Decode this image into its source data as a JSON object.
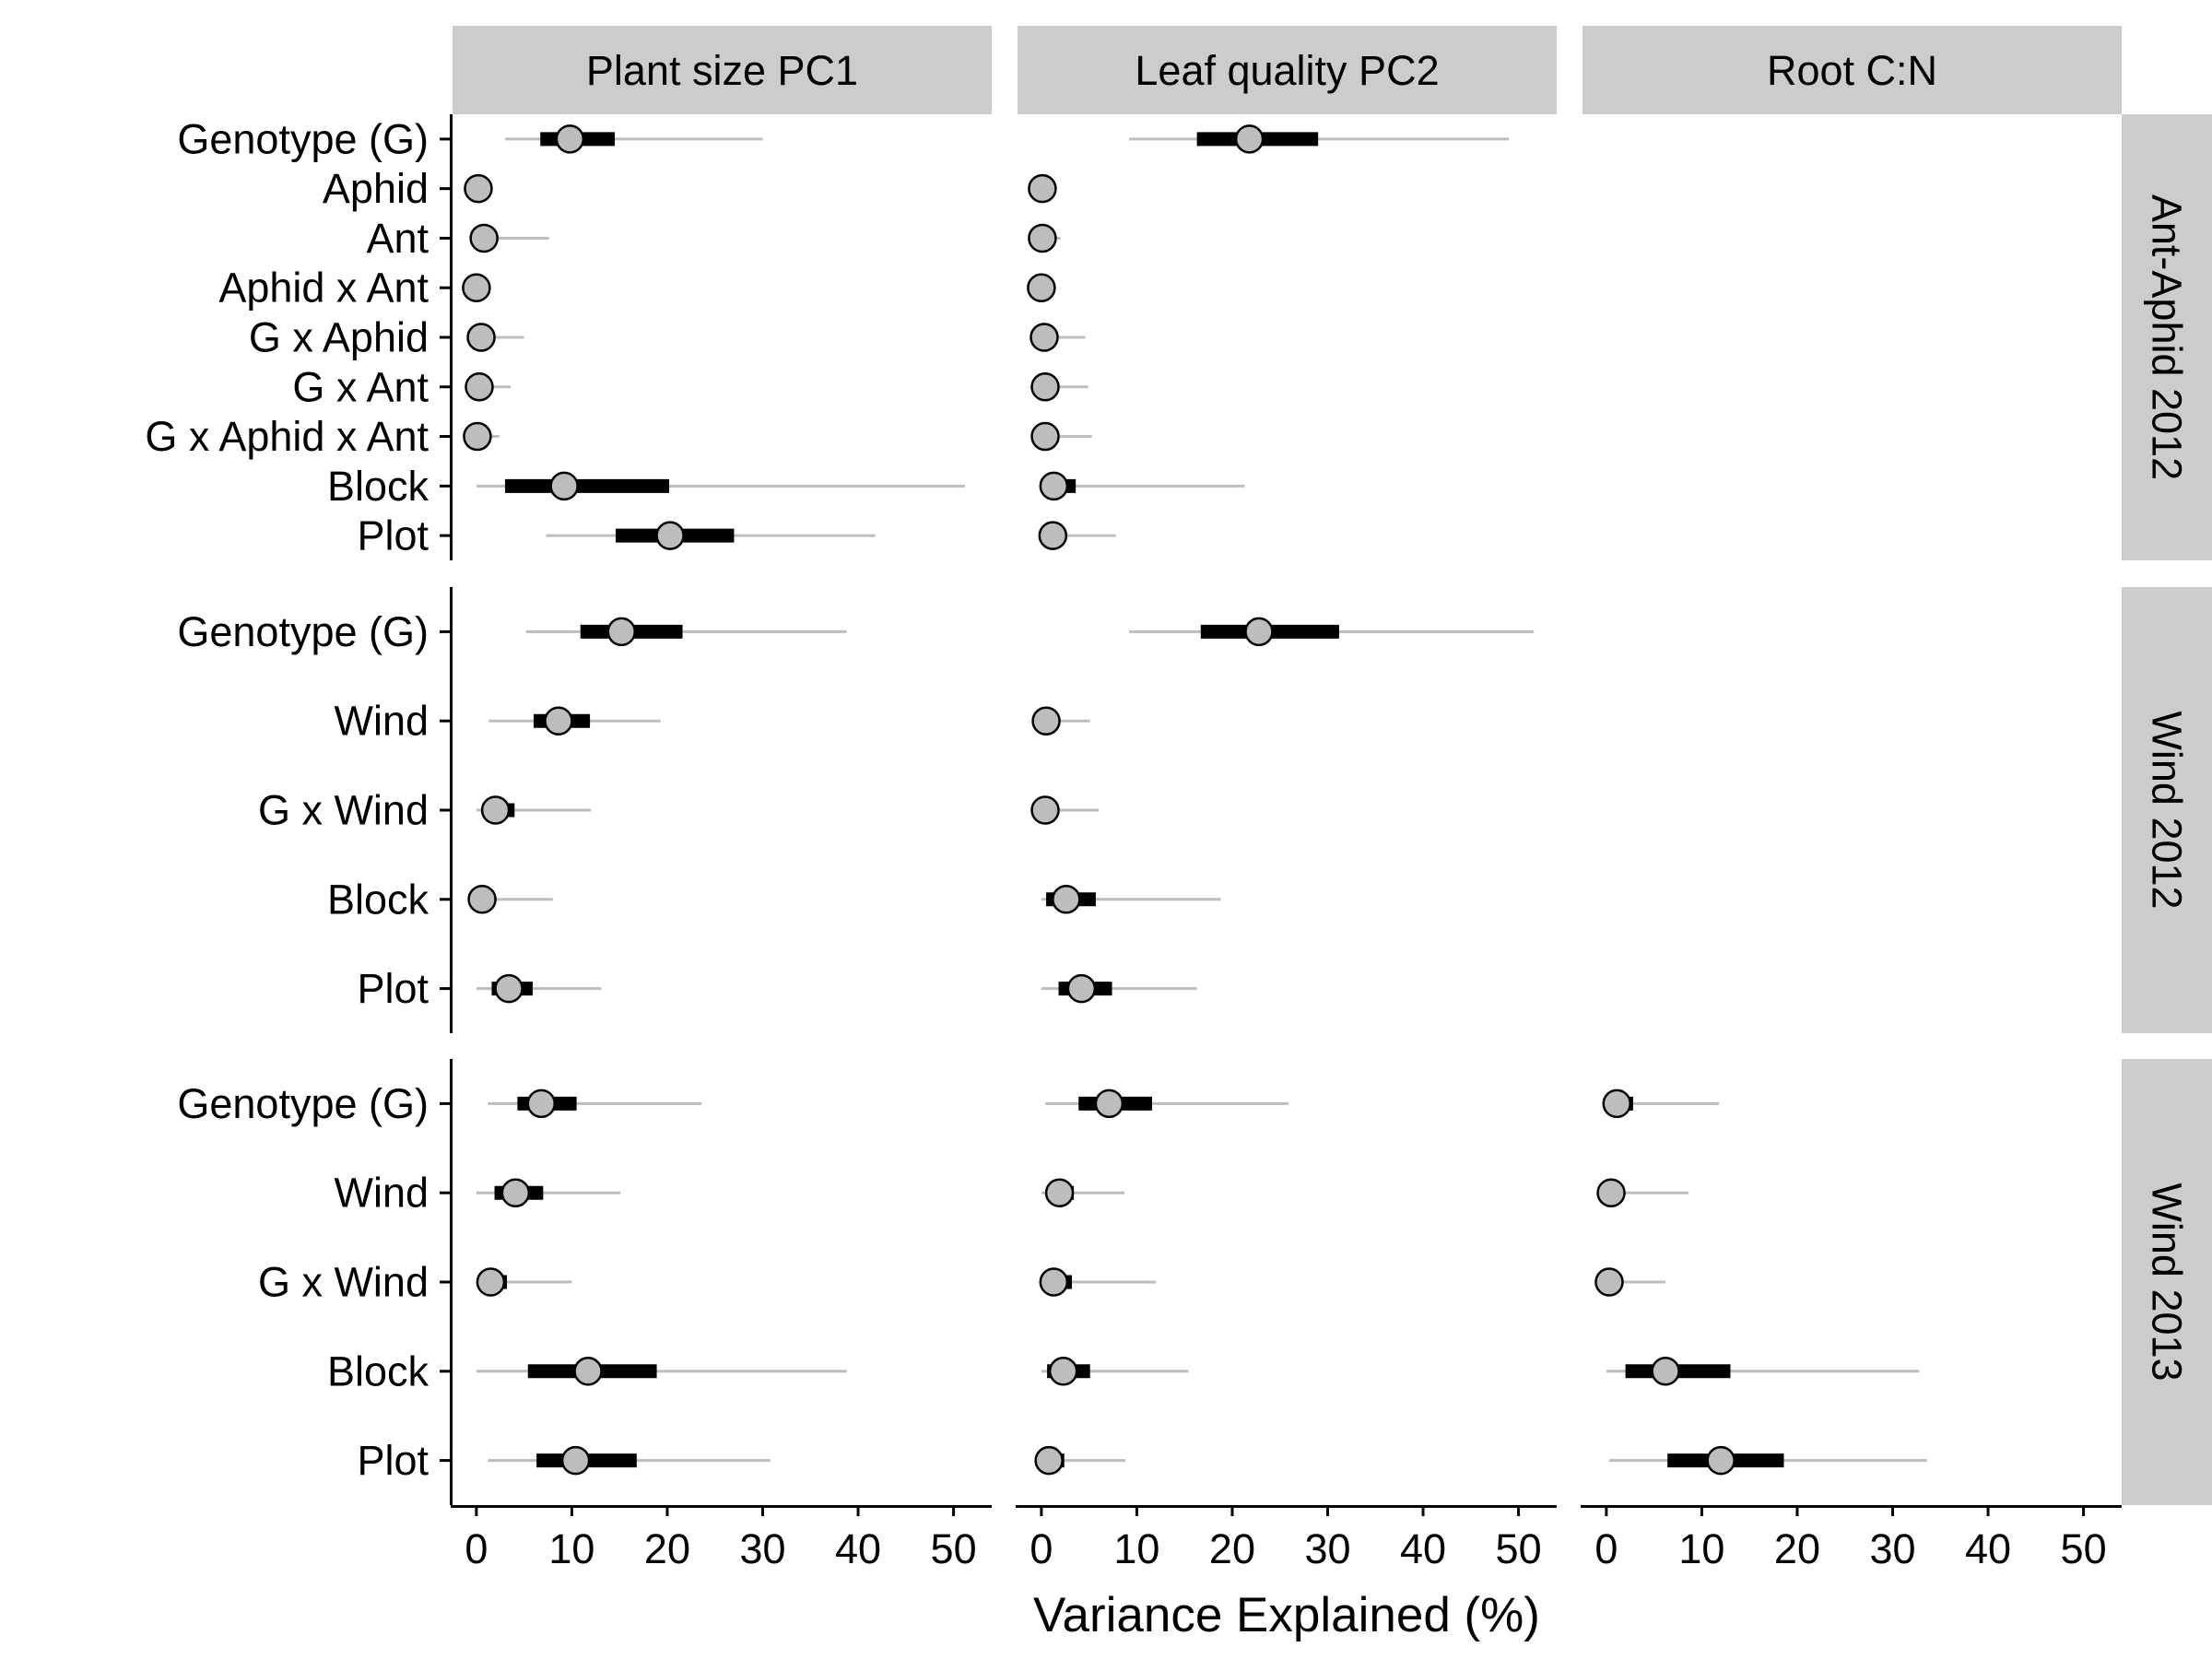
{
  "chart_data": {
    "type": "forest",
    "xlabel": "Variance Explained (%)",
    "xlim": [
      -2.5,
      54
    ],
    "x_ticks": [
      0,
      10,
      20,
      30,
      40,
      50
    ],
    "facet_columns": [
      "Plant size PC1",
      "Leaf quality PC2",
      "Root C:N"
    ],
    "facet_rows": [
      {
        "label": "Ant-Aphid 2012",
        "terms": [
          "Genotype (G)",
          "Aphid",
          "Ant",
          "Aphid x Ant",
          "G x Aphid",
          "G x Ant",
          "G x Aphid x Ant",
          "Block",
          "Plot"
        ],
        "panels": [
          {
            "column": "Plant size PC1",
            "estimates": [
              {
                "term": "Genotype (G)",
                "median": 9.8,
                "inner": [
                  6.7,
                  14.5
                ],
                "outer": [
                  3.0,
                  30.0
                ]
              },
              {
                "term": "Aphid",
                "median": 0.2,
                "inner": [
                  0.0,
                  0.3
                ],
                "outer": [
                  0.0,
                  0.3
                ]
              },
              {
                "term": "Ant",
                "median": 0.8,
                "inner": [
                  0.1,
                  1.2
                ],
                "outer": [
                  0.0,
                  7.6
                ]
              },
              {
                "term": "Aphid x Ant",
                "median": 0.0,
                "inner": [
                  0.0,
                  0.1
                ],
                "outer": [
                  0.0,
                  0.1
                ]
              },
              {
                "term": "G x Aphid",
                "median": 0.5,
                "inner": [
                  0.1,
                  0.9
                ],
                "outer": [
                  0.0,
                  5.0
                ]
              },
              {
                "term": "G x Ant",
                "median": 0.3,
                "inner": [
                  0.1,
                  0.6
                ],
                "outer": [
                  0.0,
                  3.6
                ]
              },
              {
                "term": "G x Aphid x Ant",
                "median": 0.1,
                "inner": [
                  0.0,
                  0.3
                ],
                "outer": [
                  0.0,
                  2.4
                ]
              },
              {
                "term": "Block",
                "median": 9.2,
                "inner": [
                  3.0,
                  20.2
                ],
                "outer": [
                  0.0,
                  51.2
                ]
              },
              {
                "term": "Plot",
                "median": 20.3,
                "inner": [
                  14.6,
                  27.0
                ],
                "outer": [
                  7.3,
                  41.8
                ]
              }
            ]
          },
          {
            "column": "Leaf quality PC2",
            "estimates": [
              {
                "term": "Genotype (G)",
                "median": 21.8,
                "inner": [
                  16.3,
                  29.0
                ],
                "outer": [
                  9.2,
                  49.0
                ]
              },
              {
                "term": "Aphid",
                "median": 0.1,
                "inner": [
                  0.0,
                  0.2
                ],
                "outer": [
                  0.0,
                  0.2
                ]
              },
              {
                "term": "Ant",
                "median": 0.1,
                "inner": [
                  0.0,
                  0.3
                ],
                "outer": [
                  0.0,
                  2.0
                ]
              },
              {
                "term": "Aphid x Ant",
                "median": 0.0,
                "inner": [
                  0.0,
                  0.1
                ],
                "outer": [
                  0.0,
                  0.1
                ]
              },
              {
                "term": "G x Aphid",
                "median": 0.3,
                "inner": [
                  0.1,
                  0.7
                ],
                "outer": [
                  0.0,
                  4.6
                ]
              },
              {
                "term": "G x Ant",
                "median": 0.4,
                "inner": [
                  0.1,
                  0.8
                ],
                "outer": [
                  0.0,
                  4.9
                ]
              },
              {
                "term": "G x Aphid x Ant",
                "median": 0.4,
                "inner": [
                  0.1,
                  0.9
                ],
                "outer": [
                  0.0,
                  5.3
                ]
              },
              {
                "term": "Block",
                "median": 1.3,
                "inner": [
                  0.3,
                  3.6
                ],
                "outer": [
                  0.0,
                  21.3
                ]
              },
              {
                "term": "Plot",
                "median": 1.2,
                "inner": [
                  0.3,
                  2.2
                ],
                "outer": [
                  0.0,
                  7.8
                ]
              }
            ]
          }
        ]
      },
      {
        "label": "Wind 2012",
        "terms": [
          "Genotype (G)",
          "Wind",
          "G x Wind",
          "Block",
          "Plot"
        ],
        "panels": [
          {
            "column": "Plant size PC1",
            "estimates": [
              {
                "term": "Genotype (G)",
                "median": 15.2,
                "inner": [
                  10.9,
                  21.6
                ],
                "outer": [
                  5.2,
                  38.8
                ]
              },
              {
                "term": "Wind",
                "median": 8.6,
                "inner": [
                  6.0,
                  11.9
                ],
                "outer": [
                  1.3,
                  19.3
                ]
              },
              {
                "term": "G x Wind",
                "median": 2.0,
                "inner": [
                  1.0,
                  4.0
                ],
                "outer": [
                  0.0,
                  12.0
                ]
              },
              {
                "term": "Block",
                "median": 0.6,
                "inner": [
                  0.1,
                  1.4
                ],
                "outer": [
                  0.0,
                  8.0
                ]
              },
              {
                "term": "Plot",
                "median": 3.4,
                "inner": [
                  1.6,
                  5.9
                ],
                "outer": [
                  0.0,
                  13.1
                ]
              }
            ]
          },
          {
            "column": "Leaf quality PC2",
            "estimates": [
              {
                "term": "Genotype (G)",
                "median": 22.8,
                "inner": [
                  16.7,
                  31.2
                ],
                "outer": [
                  9.2,
                  51.6
                ]
              },
              {
                "term": "Wind",
                "median": 0.5,
                "inner": [
                  0.1,
                  1.1
                ],
                "outer": [
                  0.0,
                  5.1
                ]
              },
              {
                "term": "G x Wind",
                "median": 0.4,
                "inner": [
                  0.1,
                  1.2
                ],
                "outer": [
                  0.0,
                  6.0
                ]
              },
              {
                "term": "Block",
                "median": 2.6,
                "inner": [
                  0.5,
                  5.7
                ],
                "outer": [
                  0.0,
                  18.8
                ]
              },
              {
                "term": "Plot",
                "median": 4.2,
                "inner": [
                  1.8,
                  7.4
                ],
                "outer": [
                  0.0,
                  16.3
                ]
              }
            ]
          }
        ]
      },
      {
        "label": "Wind 2013",
        "terms": [
          "Genotype (G)",
          "Wind",
          "G x Wind",
          "Block",
          "Plot"
        ],
        "panels": [
          {
            "column": "Plant size PC1",
            "estimates": [
              {
                "term": "Genotype (G)",
                "median": 6.8,
                "inner": [
                  4.3,
                  10.5
                ],
                "outer": [
                  1.2,
                  23.6
                ]
              },
              {
                "term": "Wind",
                "median": 4.1,
                "inner": [
                  1.9,
                  7.0
                ],
                "outer": [
                  0.0,
                  15.1
                ]
              },
              {
                "term": "G x Wind",
                "median": 1.5,
                "inner": [
                  0.4,
                  3.2
                ],
                "outer": [
                  0.0,
                  10.0
                ]
              },
              {
                "term": "Block",
                "median": 11.7,
                "inner": [
                  5.4,
                  18.9
                ],
                "outer": [
                  0.0,
                  38.8
                ]
              },
              {
                "term": "Plot",
                "median": 10.4,
                "inner": [
                  6.3,
                  16.8
                ],
                "outer": [
                  1.2,
                  30.8
                ]
              }
            ]
          },
          {
            "column": "Leaf quality PC2",
            "estimates": [
              {
                "term": "Genotype (G)",
                "median": 7.1,
                "inner": [
                  3.9,
                  11.6
                ],
                "outer": [
                  0.4,
                  25.9
                ]
              },
              {
                "term": "Wind",
                "median": 1.9,
                "inner": [
                  0.6,
                  3.4
                ],
                "outer": [
                  0.0,
                  8.7
                ]
              },
              {
                "term": "G x Wind",
                "median": 1.3,
                "inner": [
                  0.4,
                  3.2
                ],
                "outer": [
                  0.0,
                  12.0
                ]
              },
              {
                "term": "Block",
                "median": 2.3,
                "inner": [
                  0.6,
                  5.1
                ],
                "outer": [
                  0.0,
                  15.4
                ]
              },
              {
                "term": "Plot",
                "median": 0.8,
                "inner": [
                  0.2,
                  2.4
                ],
                "outer": [
                  0.0,
                  8.8
                ]
              }
            ]
          },
          {
            "column": "Root C:N",
            "estimates": [
              {
                "term": "Genotype (G)",
                "median": 1.1,
                "inner": [
                  0.3,
                  2.8
                ],
                "outer": [
                  0.0,
                  11.8
                ]
              },
              {
                "term": "Wind",
                "median": 0.5,
                "inner": [
                  0.1,
                  1.5
                ],
                "outer": [
                  0.0,
                  8.6
                ]
              },
              {
                "term": "G x Wind",
                "median": 0.3,
                "inner": [
                  0.0,
                  0.8
                ],
                "outer": [
                  0.0,
                  6.2
                ]
              },
              {
                "term": "Block",
                "median": 6.2,
                "inner": [
                  2.0,
                  13.0
                ],
                "outer": [
                  0.0,
                  32.8
                ]
              },
              {
                "term": "Plot",
                "median": 12.0,
                "inner": [
                  6.4,
                  18.6
                ],
                "outer": [
                  0.3,
                  33.6
                ]
              }
            ]
          }
        ]
      }
    ],
    "colors": {
      "point_fill": "#bdbdbd",
      "point_stroke": "#000000",
      "inner_interval": "#000000",
      "outer_interval": "#bdbdbd",
      "strip_background": "#cccccc",
      "axis": "#000000"
    }
  }
}
